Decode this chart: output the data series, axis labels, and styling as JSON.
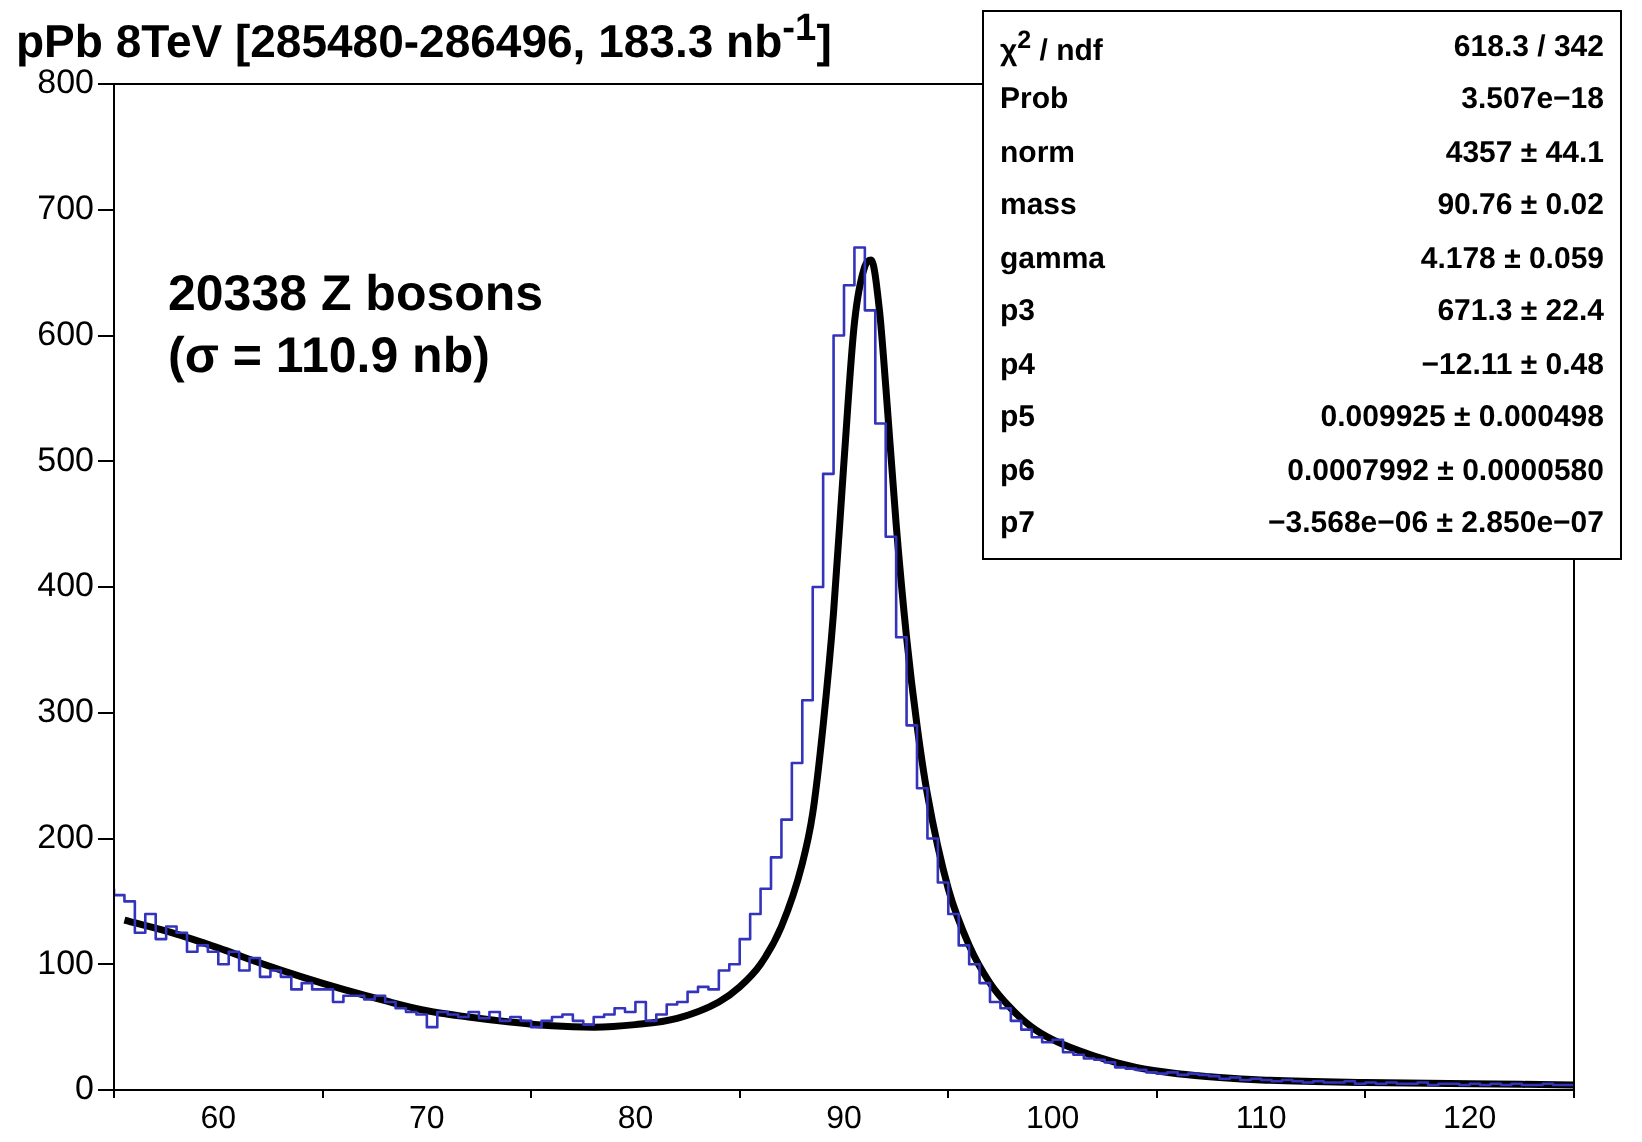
{
  "chart_data": {
    "type": "step",
    "title": "pPb 8TeV [285480-286496, 183.3 nb$^{-1}$]",
    "x": [
      55,
      55.5,
      56,
      56.5,
      57,
      57.5,
      58,
      58.5,
      59,
      59.5,
      60,
      60.5,
      61,
      61.5,
      62,
      62.5,
      63,
      63.5,
      64,
      64.5,
      65,
      65.5,
      66,
      66.5,
      67,
      67.5,
      68,
      68.5,
      69,
      69.5,
      70,
      70.5,
      71,
      71.5,
      72,
      72.5,
      73,
      73.5,
      74,
      74.5,
      75,
      75.5,
      76,
      76.5,
      77,
      77.5,
      78,
      78.5,
      79,
      79.5,
      80,
      80.5,
      81,
      81.5,
      82,
      82.5,
      83,
      83.5,
      84,
      84.5,
      85,
      85.5,
      86,
      86.5,
      87,
      87.5,
      88,
      88.5,
      89,
      89.5,
      90,
      90.5,
      91,
      91.5,
      92,
      92.5,
      93,
      93.5,
      94,
      94.5,
      95,
      95.5,
      96,
      96.5,
      97,
      97.5,
      98,
      98.5,
      99,
      99.5,
      100,
      100.5,
      101,
      101.5,
      102,
      102.5,
      103,
      103.5,
      104,
      104.5,
      105,
      105.5,
      106,
      106.5,
      107,
      107.5,
      108,
      108.5,
      109,
      109.5,
      110,
      110.5,
      111,
      111.5,
      112,
      112.5,
      113,
      113.5,
      114,
      114.5,
      115,
      115.5,
      116,
      116.5,
      117,
      117.5,
      118,
      118.5,
      119,
      119.5,
      120,
      120.5,
      121,
      121.5,
      122,
      122.5,
      123,
      123.5,
      124,
      124.5,
      125
    ],
    "color": "#3333bb",
    "values": [
      160,
      155,
      150,
      125,
      140,
      120,
      130,
      125,
      110,
      115,
      110,
      100,
      110,
      95,
      105,
      90,
      95,
      90,
      80,
      85,
      80,
      80,
      70,
      75,
      75,
      72,
      75,
      70,
      65,
      62,
      60,
      50,
      62,
      60,
      58,
      62,
      57,
      62,
      55,
      58,
      55,
      50,
      55,
      58,
      60,
      55,
      52,
      58,
      60,
      65,
      62,
      70,
      55,
      60,
      68,
      70,
      78,
      82,
      80,
      95,
      100,
      120,
      140,
      160,
      185,
      215,
      260,
      310,
      400,
      490,
      600,
      640,
      670,
      620,
      530,
      440,
      360,
      290,
      240,
      200,
      165,
      140,
      115,
      100,
      85,
      70,
      65,
      55,
      48,
      42,
      38,
      40,
      30,
      28,
      25,
      24,
      22,
      18,
      17,
      16,
      14,
      13,
      14,
      12,
      13,
      12,
      11,
      9,
      10,
      8,
      9,
      8,
      7,
      8,
      7,
      6,
      7,
      6,
      6,
      7,
      5,
      6,
      5,
      6,
      5,
      5,
      6,
      4,
      5,
      5,
      4,
      5,
      4,
      5,
      4,
      5,
      4,
      4,
      5,
      4,
      4
    ],
    "series": [
      {
        "type": "line",
        "color": "#000000",
        "x": [
          55.5,
          58,
          60,
          62,
          64,
          66,
          68,
          70,
          72,
          74,
          76,
          78,
          80,
          82,
          84,
          85,
          86,
          87,
          88,
          88.5,
          89,
          89.5,
          90,
          90.5,
          91,
          91.3,
          91.7,
          92,
          92.5,
          93,
          93.5,
          94,
          95,
          96,
          97,
          98,
          99,
          100,
          102,
          104,
          106,
          108,
          110,
          115,
          120,
          125
        ],
        "values": [
          135,
          124,
          113,
          101,
          90,
          80,
          71,
          63,
          58,
          54,
          51,
          50,
          52,
          57,
          70,
          82,
          100,
          130,
          180,
          220,
          290,
          380,
          500,
          610,
          655,
          660,
          620,
          560,
          450,
          360,
          290,
          235,
          160,
          115,
          85,
          65,
          50,
          40,
          27,
          18,
          13,
          10,
          8,
          6,
          5,
          4
        ]
      }
    ],
    "xlim": [
      55,
      125
    ],
    "xticks": [
      60,
      70,
      80,
      90,
      100,
      110,
      120
    ],
    "ylim": [
      0,
      800
    ],
    "yticks": [
      0,
      100,
      200,
      300,
      400,
      500,
      600,
      700,
      800
    ],
    "grid": false,
    "legend": false,
    "marker": "none",
    "line_style": "solid",
    "annotations": [
      "20338 Z bosons",
      "(σ = 110.9 nb)",
      "χ$^{2}$ / ndf",
      "618.3 / 342",
      "Prob",
      "3.507e−18",
      "norm",
      "4357 ± 44.1",
      "mass",
      "90.76 ± 0.02",
      "gamma",
      "4.178 ± 0.059",
      "p3",
      "671.3 ± 22.4",
      "p4",
      "−12.11 ± 0.48",
      "p5",
      "0.009925 ± 0.000498",
      "p6",
      "0.0007992 ± 0.0000580",
      "p7",
      "−3.568e−06 ± 2.850e−07"
    ]
  }
}
